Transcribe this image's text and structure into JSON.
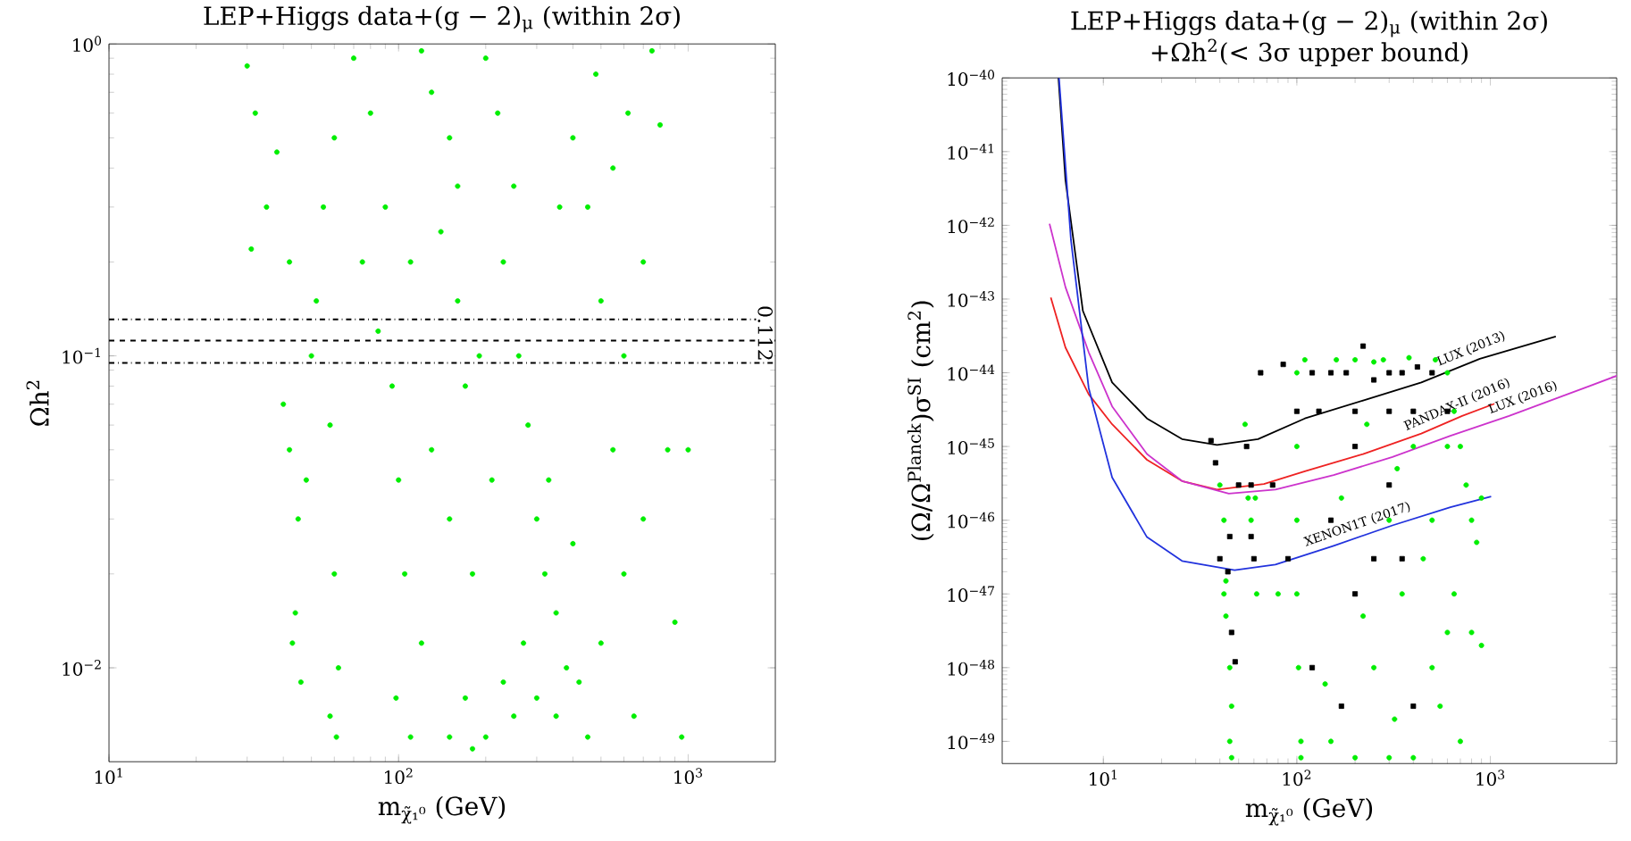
{
  "chart_data": [
    {
      "type": "scatter",
      "title": "LEP+Higgs data+(g − 2)$_{μ}$ (within 2σ)",
      "xlabel": "m$_{χ̃₁⁰}$ (GeV)",
      "ylabel": "Ωh$^{2}$",
      "log": "xy",
      "xlim": [
        10,
        2000
      ],
      "ylim": [
        0.005,
        1
      ],
      "xticks": [
        {
          "value": 10,
          "label": "10$^{1}$"
        },
        {
          "value": 100,
          "label": "10$^{2}$"
        },
        {
          "value": 1000,
          "label": "10$^{3}$"
        }
      ],
      "yticks": [
        {
          "value": 0.01,
          "label": "10$^{−2}$"
        },
        {
          "value": 0.1,
          "label": "10$^{−1}$"
        },
        {
          "value": 1,
          "label": "10$^{0}$"
        }
      ],
      "ref_lines": [
        {
          "axis": "y",
          "value": 0.131,
          "line_style": "dashdot",
          "color": "#000000"
        },
        {
          "axis": "y",
          "value": 0.112,
          "label": "0.112",
          "line_style": "dashed",
          "color": "#000000"
        },
        {
          "axis": "y",
          "value": 0.095,
          "line_style": "dashdot",
          "color": "#000000"
        }
      ],
      "series": [
        {
          "color": "#00ee00",
          "marker": "circle",
          "x": [
            30,
            32,
            35,
            31,
            38,
            42,
            40,
            42,
            45,
            44,
            46,
            43,
            48,
            50,
            55,
            58,
            60,
            62,
            61,
            58,
            52,
            60,
            70,
            80,
            90,
            75,
            85,
            95,
            100,
            105,
            98,
            110,
            120,
            130,
            150,
            140,
            160,
            170,
            130,
            150,
            180,
            200,
            220,
            250,
            230,
            260,
            280,
            210,
            300,
            320,
            350,
            400,
            380,
            300,
            250,
            200,
            180,
            150,
            350,
            420,
            450,
            400,
            450,
            500,
            480,
            550,
            600,
            550,
            600,
            500,
            650,
            700,
            750,
            800,
            850,
            900,
            1000,
            950,
            700,
            620,
            330,
            270,
            230,
            170,
            120,
            360,
            160,
            190,
            110
          ],
          "values": [
            0.85,
            0.6,
            0.3,
            0.22,
            0.45,
            0.2,
            0.07,
            0.05,
            0.03,
            0.015,
            0.009,
            0.012,
            0.04,
            0.1,
            0.3,
            0.06,
            0.02,
            0.01,
            0.006,
            0.007,
            0.15,
            0.5,
            0.9,
            0.6,
            0.3,
            0.2,
            0.12,
            0.08,
            0.04,
            0.02,
            0.008,
            0.006,
            0.95,
            0.7,
            0.5,
            0.25,
            0.15,
            0.08,
            0.05,
            0.03,
            0.02,
            0.9,
            0.6,
            0.35,
            0.2,
            0.1,
            0.06,
            0.04,
            0.03,
            0.02,
            0.015,
            0.025,
            0.01,
            0.008,
            0.007,
            0.006,
            0.0055,
            0.006,
            0.007,
            0.009,
            0.006,
            0.5,
            0.3,
            0.15,
            0.8,
            0.4,
            0.1,
            0.05,
            0.02,
            0.012,
            0.007,
            0.03,
            0.95,
            0.55,
            0.05,
            0.014,
            0.05,
            0.006,
            0.2,
            0.6,
            0.04,
            0.012,
            0.009,
            0.008,
            0.012,
            0.3,
            0.35,
            0.1,
            0.2
          ]
        }
      ]
    },
    {
      "type": "scatter",
      "title": "LEP+Higgs data+(g − 2)$_{μ}$ (within 2σ)",
      "subtitle": "+Ωh$^{2}$(< 3σ upper bound)",
      "xlabel": "m$_{χ̃₁⁰}$ (GeV)",
      "ylabel": "(Ω/Ω$^{Planck}$)σ$^{SI}$ (cm$^{2}$)",
      "log": "xy",
      "xlim": [
        3,
        4500
      ],
      "ylim": [
        5e-50,
        1e-40
      ],
      "xticks": [
        {
          "value": 10,
          "label": "10$^{1}$"
        },
        {
          "value": 100,
          "label": "10$^{2}$"
        },
        {
          "value": 1000,
          "label": "10$^{3}$"
        }
      ],
      "yticks": [
        {
          "value": 1e-49,
          "label": "10$^{−49}$"
        },
        {
          "value": 1e-48,
          "label": "10$^{−48}$"
        },
        {
          "value": 1e-47,
          "label": "10$^{−47}$"
        },
        {
          "value": 1e-46,
          "label": "10$^{−46}$"
        },
        {
          "value": 1e-45,
          "label": "10$^{−45}$"
        },
        {
          "value": 1e-44,
          "label": "10$^{−44}$"
        },
        {
          "value": 1e-43,
          "label": "10$^{−43}$"
        },
        {
          "value": 1e-42,
          "label": "10$^{−42}$"
        },
        {
          "value": 1e-41,
          "label": "10$^{−41}$"
        },
        {
          "value": 1e-40,
          "label": "10$^{−40}$"
        }
      ],
      "series": [
        {
          "color": "#00ee00",
          "marker": "circle",
          "x": [
            40,
            42,
            43,
            42,
            43,
            45,
            46,
            45,
            46,
            54,
            56,
            58,
            61,
            62,
            100,
            100,
            100,
            100,
            102,
            105,
            105,
            110,
            160,
            200,
            250,
            280,
            380,
            520,
            600,
            650,
            700,
            750,
            800,
            850,
            650,
            600,
            500,
            800,
            900,
            700,
            400,
            300,
            200,
            150,
            140,
            220,
            300,
            400,
            250,
            350,
            500,
            600,
            170,
            230,
            330,
            450,
            550,
            320,
            80,
            900
          ],
          "values": [
            3e-46,
            1e-46,
            1.5e-47,
            1e-47,
            5e-48,
            1e-48,
            3e-49,
            1e-49,
            6e-50,
            2e-45,
            2e-46,
            1e-46,
            2e-46,
            1e-47,
            1e-44,
            1e-45,
            1e-46,
            1e-47,
            1e-48,
            1e-49,
            6e-50,
            1.5e-44,
            1.5e-44,
            1.5e-44,
            1.4e-44,
            1.5e-44,
            1.6e-44,
            1.5e-44,
            1e-44,
            3e-45,
            1e-45,
            3e-46,
            1e-46,
            5e-47,
            1e-47,
            3e-48,
            1e-48,
            3e-48,
            2e-48,
            1e-49,
            6e-50,
            6e-50,
            6e-50,
            1e-49,
            6e-49,
            5e-48,
            1e-46,
            1e-45,
            1e-48,
            1e-47,
            1e-46,
            1e-45,
            2e-46,
            2e-45,
            5e-46,
            3e-47,
            3e-49,
            2e-49,
            1e-47,
            2e-46
          ]
        },
        {
          "color": "#000000",
          "marker": "square",
          "x": [
            36,
            38,
            40,
            44,
            46,
            48,
            45,
            50,
            55,
            58,
            60,
            58,
            65,
            75,
            85,
            90,
            100,
            120,
            150,
            180,
            220,
            250,
            300,
            350,
            420,
            500,
            130,
            200,
            300,
            400,
            600,
            200,
            300,
            150,
            250,
            350,
            200,
            120,
            170,
            400
          ],
          "values": [
            1.2e-45,
            6e-46,
            3e-47,
            2e-47,
            3e-48,
            1.2e-48,
            6e-47,
            3e-46,
            1e-45,
            3e-46,
            3e-47,
            6e-47,
            1e-44,
            3e-46,
            1.3e-44,
            3e-47,
            3e-45,
            1e-44,
            1e-44,
            1e-44,
            2.3e-44,
            8e-45,
            1e-44,
            1e-44,
            1.2e-44,
            1e-44,
            3e-45,
            3e-45,
            3e-45,
            3e-45,
            3e-45,
            1e-45,
            3e-46,
            1e-46,
            3e-47,
            3e-47,
            1e-47,
            1e-48,
            3e-49,
            3e-49
          ]
        },
        {
          "type": "line",
          "name": "LUX (2013)",
          "color": "#000000",
          "x": [
            5.86,
            6.37,
            7.84,
            11.1,
            16.8,
            25.5,
            38.7,
            63,
            110,
            220,
            440,
            883,
            2180
          ],
          "values": [
            1e-40,
            4.1e-42,
            6.9e-44,
            7.4e-45,
            2.4e-45,
            1.26e-45,
            1.05e-45,
            1.26e-45,
            2.4e-45,
            4.2e-45,
            7.4e-45,
            1.55e-44,
            3.1e-44
          ]
        },
        {
          "type": "line",
          "name": "PANDAX-II (2016)",
          "color": "#ee2222",
          "x": [
            5.35,
            6.37,
            8.4,
            11.1,
            16.8,
            25.5,
            38.7,
            67.6,
            110,
            220,
            440,
            715,
            1050
          ],
          "values": [
            1.05e-43,
            2.2e-44,
            5.1e-45,
            2e-45,
            6.6e-46,
            3.4e-46,
            2.6e-46,
            3.1e-46,
            4.6e-46,
            7.9e-46,
            1.5e-45,
            2.6e-45,
            3.8e-45
          ]
        },
        {
          "type": "line",
          "name": "LUX (2016)",
          "color": "#cc33cc",
          "x": [
            5.27,
            6.37,
            8.4,
            11.1,
            16.8,
            25.5,
            44.5,
            77.5,
            155,
            312,
            622,
            1250,
            2500,
            4500
          ],
          "values": [
            1.05e-42,
            1.45e-43,
            1.9e-44,
            3.5e-45,
            7.9e-46,
            3.4e-46,
            2.3e-46,
            2.6e-46,
            4.1e-46,
            7.2e-46,
            1.4e-45,
            2.6e-45,
            5.1e-45,
            9.1e-45
          ]
        },
        {
          "type": "line",
          "name": "XENON1T (2017)",
          "color": "#2233dd",
          "x": [
            5.9,
            6.8,
            8.4,
            11.1,
            16.8,
            25.5,
            47.7,
            77.5,
            155,
            312,
            622,
            1010
          ],
          "values": [
            1e-40,
            6.3e-43,
            6.2e-45,
            3.8e-46,
            5.9e-47,
            2.8e-47,
            2.1e-47,
            2.5e-47,
            4.5e-47,
            8.5e-47,
            1.5e-46,
            2.1e-46
          ]
        }
      ]
    }
  ]
}
